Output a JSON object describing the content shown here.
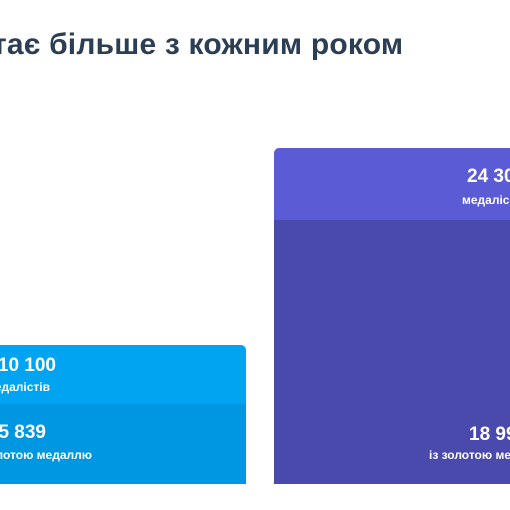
{
  "headline": "тає більше з кожним роком",
  "chart_data": {
    "type": "bar",
    "bars": [
      {
        "total_value": "10 100",
        "total_caption": "медалістів",
        "gold_value": "5 839",
        "gold_caption": "золотою медаллю",
        "color_total": "#00a4f0",
        "color_gold": "#0097e2"
      },
      {
        "total_value": "24 30",
        "total_caption": "медаліс",
        "gold_value": "18 99",
        "gold_caption": "із золотою ме",
        "color_total": "#5b5bd6",
        "color_gold": "#4a4aac"
      }
    ]
  }
}
